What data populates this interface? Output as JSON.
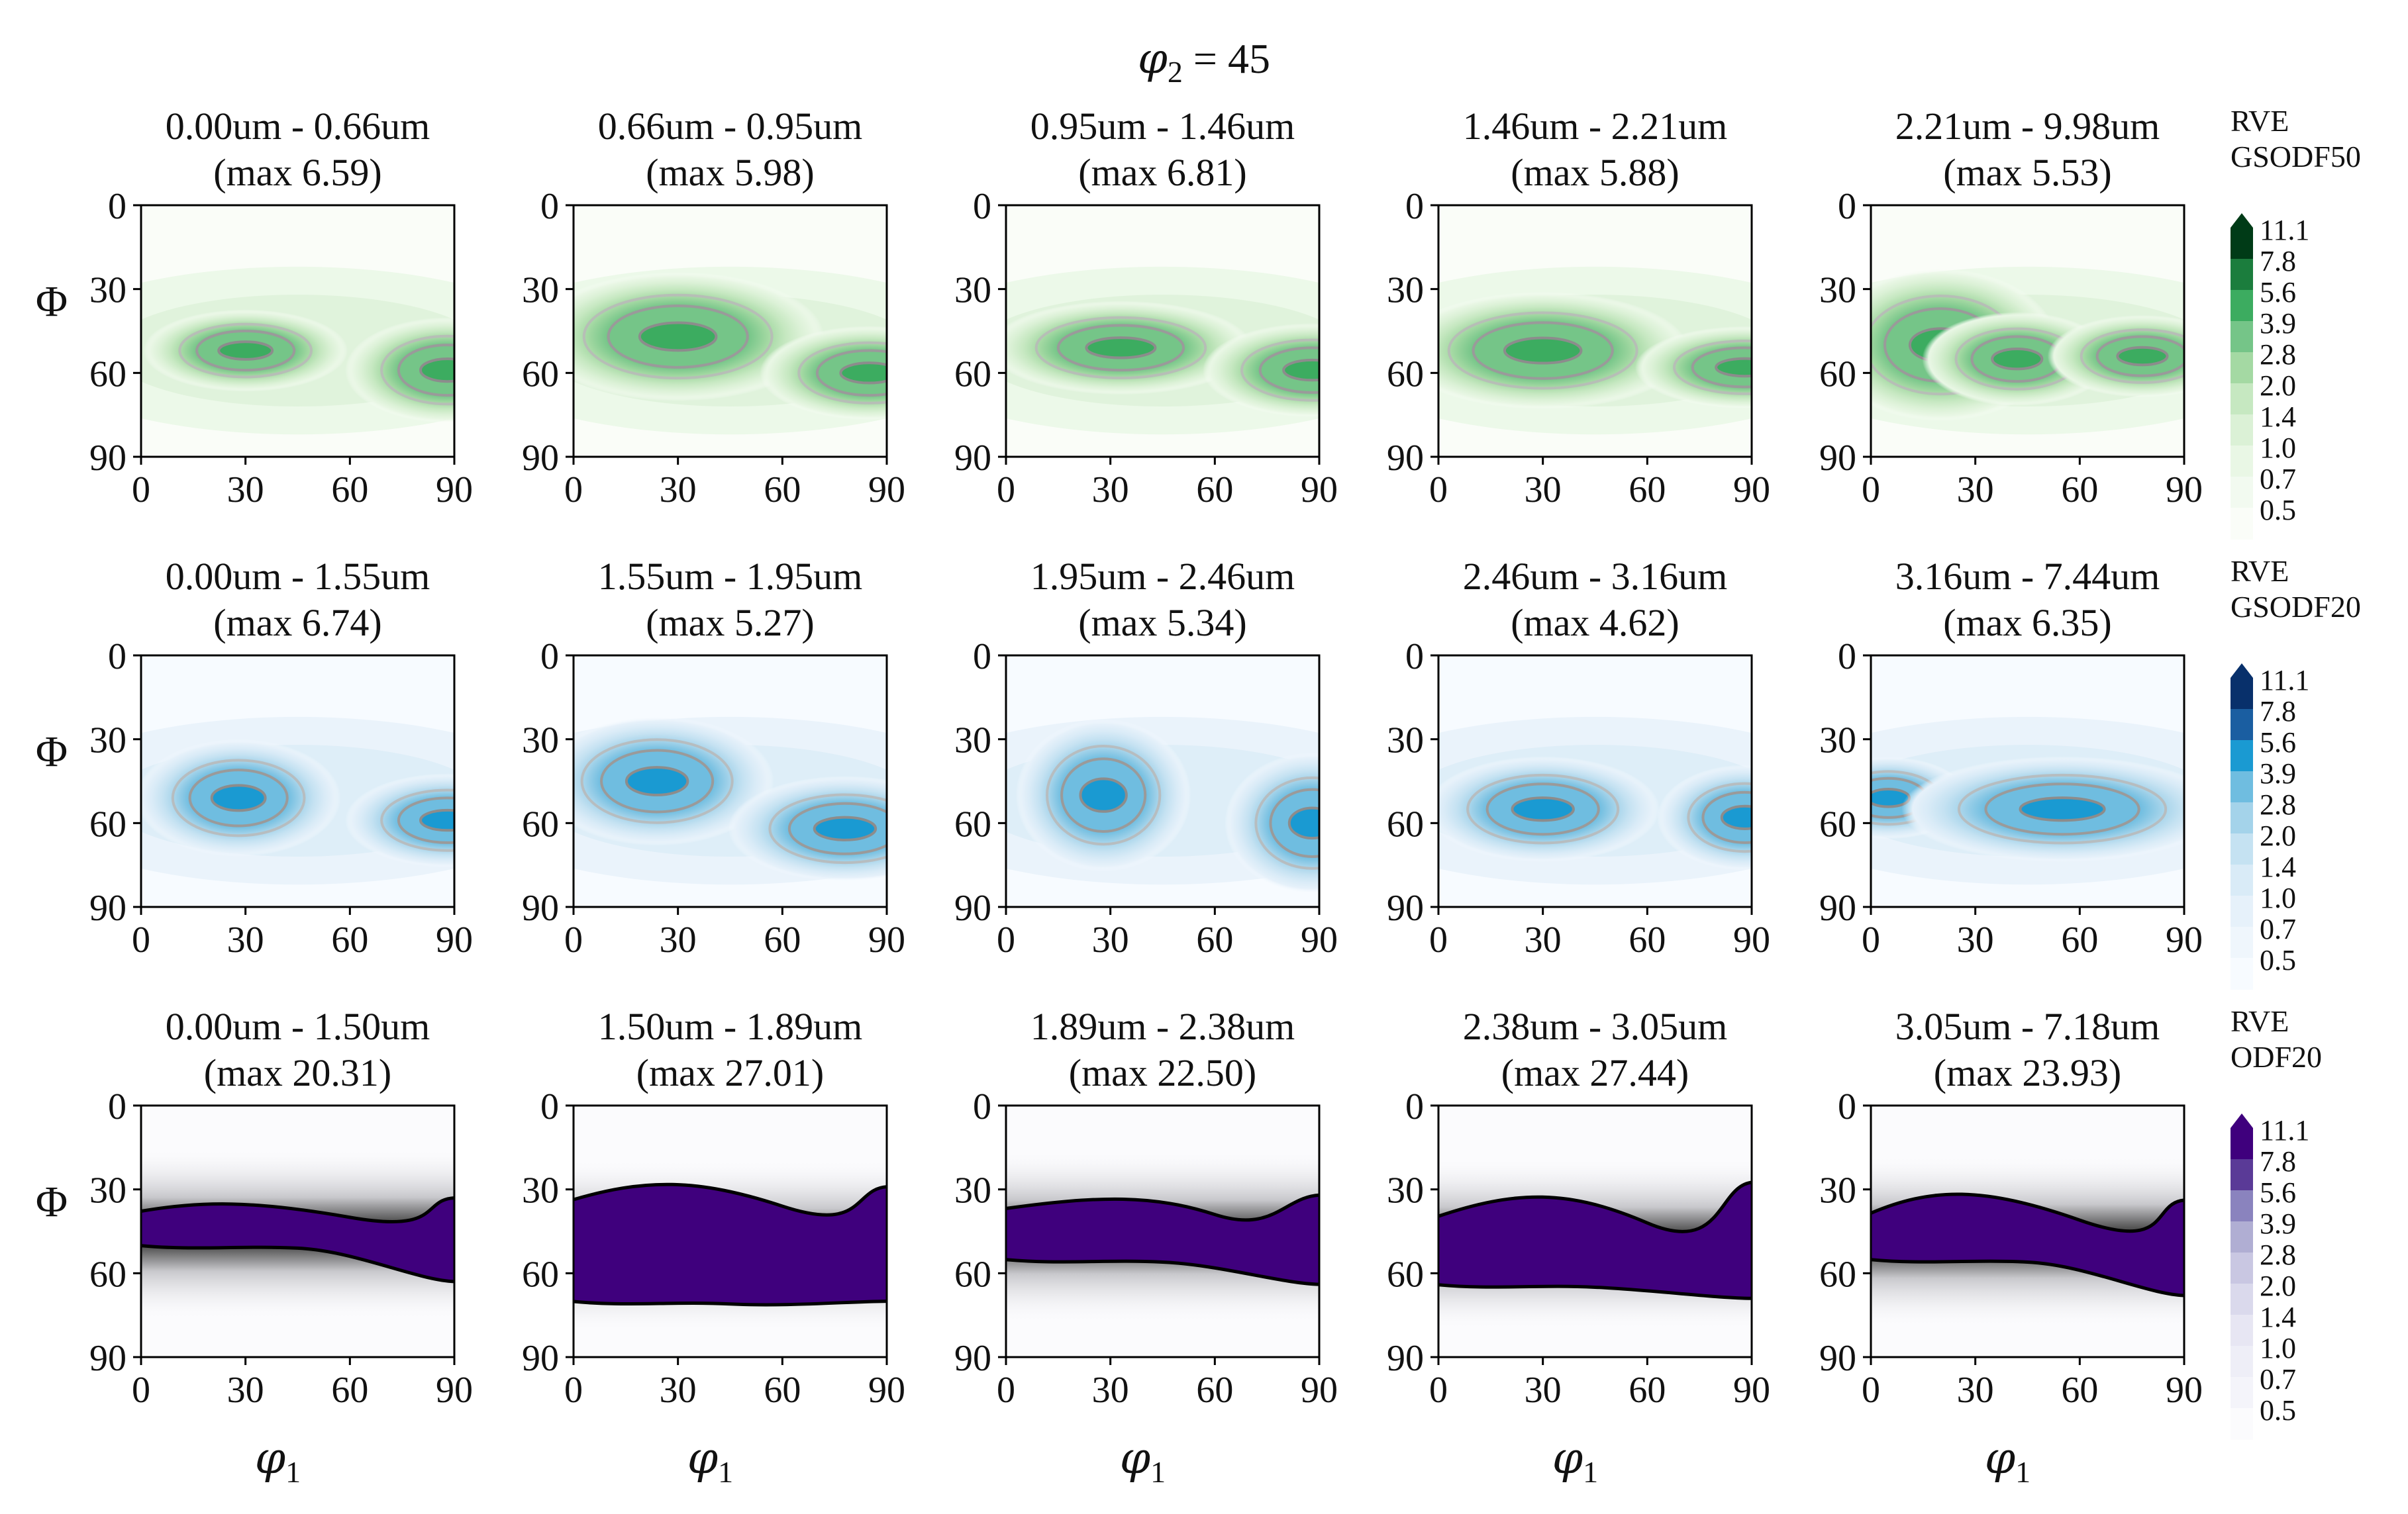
{
  "title": {
    "symbol": "φ",
    "subscript": "2",
    "rest": " = 45"
  },
  "axes": {
    "xlabel_symbol": "φ",
    "xlabel_subscript": "1",
    "ylabel": "Φ",
    "x_ticks": [
      "0",
      "30",
      "60",
      "90"
    ],
    "y_ticks": [
      "0",
      "30",
      "60",
      "90"
    ],
    "xlim": [
      0,
      90
    ],
    "ylim": [
      90,
      0
    ]
  },
  "chart_data": {
    "type": "contour",
    "colorbar_levels": [
      "11.1",
      "7.8",
      "5.6",
      "3.9",
      "2.8",
      "2.0",
      "1.4",
      "1.0",
      "0.7",
      "0.5"
    ],
    "rows": [
      {
        "label_line1": "RVE",
        "label_line2": "GSODF50",
        "colormap": "greens",
        "colors": [
          "#003b17",
          "#1b7d3d",
          "#3cac60",
          "#75c588",
          "#a4d9a3",
          "#c6e8c1",
          "#dbf1d6",
          "#e9f7e5",
          "#f2faf0",
          "#fafdf8"
        ],
        "panels": [
          {
            "range": "0.00um - 0.66um",
            "max": "(max 6.59)",
            "peaks": [
              [
                30,
                52,
                14,
                7
              ],
              [
                88,
                59,
                14,
                9
              ]
            ]
          },
          {
            "range": "0.66um - 0.95um",
            "max": "(max 5.98)",
            "peaks": [
              [
                30,
                47,
                20,
                11
              ],
              [
                85,
                60,
                15,
                8
              ]
            ]
          },
          {
            "range": "0.95um - 1.46um",
            "max": "(max 6.81)",
            "peaks": [
              [
                33,
                51,
                18,
                8
              ],
              [
                88,
                59,
                15,
                8
              ]
            ]
          },
          {
            "range": "1.46um - 2.21um",
            "max": "(max 5.88)",
            "peaks": [
              [
                30,
                52,
                20,
                10
              ],
              [
                88,
                58,
                15,
                7
              ]
            ]
          },
          {
            "range": "2.21um - 9.98um",
            "max": "(max 5.53)",
            "peaks": [
              [
                20,
                50,
                16,
                13
              ],
              [
                42,
                55,
                13,
                8
              ],
              [
                78,
                54,
                13,
                7
              ]
            ]
          }
        ]
      },
      {
        "label_line1": "RVE",
        "label_line2": "GSODF20",
        "colormap": "blues",
        "colors": [
          "#08306b",
          "#1a5ea1",
          "#1a9ad2",
          "#6fbde0",
          "#a4d3ea",
          "#c5e2f2",
          "#d9ebf7",
          "#e6f1fa",
          "#eff6fc",
          "#f7fbff"
        ],
        "panels": [
          {
            "range": "0.00um - 1.55um",
            "max": "(max 6.74)",
            "peaks": [
              [
                28,
                51,
                14,
                10
              ],
              [
                88,
                59,
                14,
                8
              ]
            ]
          },
          {
            "range": "1.55um - 1.95um",
            "max": "(max 5.27)",
            "peaks": [
              [
                24,
                45,
                16,
                11
              ],
              [
                78,
                62,
                16,
                9
              ]
            ]
          },
          {
            "range": "1.95um - 2.46um",
            "max": "(max 5.34)",
            "peaks": [
              [
                28,
                50,
                12,
                13
              ],
              [
                88,
                60,
                12,
                12
              ]
            ]
          },
          {
            "range": "2.46um - 3.16um",
            "max": "(max 4.62)",
            "peaks": [
              [
                30,
                55,
                16,
                9
              ],
              [
                88,
                58,
                12,
                9
              ]
            ]
          },
          {
            "range": "3.16um - 7.44um",
            "max": "(max 6.35)",
            "peaks": [
              [
                5,
                51,
                11,
                7
              ],
              [
                55,
                55,
                22,
                9
              ]
            ]
          }
        ]
      },
      {
        "label_line1": "RVE",
        "label_line2": "ODF20",
        "colormap": "purples",
        "colors": [
          "#3f007d",
          "#5a3a97",
          "#8a83be",
          "#b0aed3",
          "#c9c7e2",
          "#dad9ec",
          "#e7e6f3",
          "#eeeef7",
          "#f4f4fa",
          "#fbfbfd"
        ],
        "panels": [
          {
            "range": "0.00um - 1.50um",
            "max": "(max 20.31)"
          },
          {
            "range": "1.50um - 1.89um",
            "max": "(max 27.01)"
          },
          {
            "range": "1.89um - 2.38um",
            "max": "(max 22.50)"
          },
          {
            "range": "2.38um - 3.05um",
            "max": "(max 27.44)"
          },
          {
            "range": "3.05um - 7.18um",
            "max": "(max 23.93)"
          }
        ]
      }
    ]
  }
}
